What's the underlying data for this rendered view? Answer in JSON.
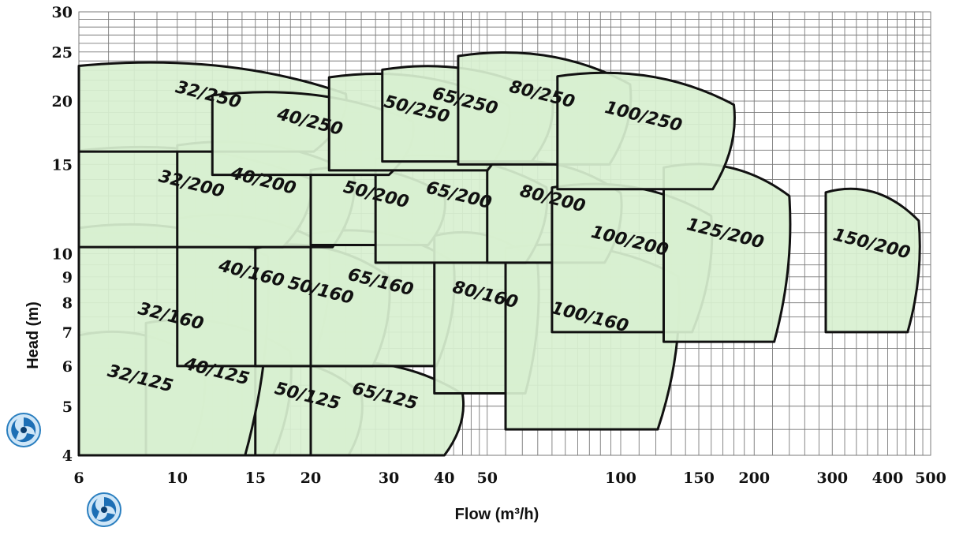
{
  "chart_data": {
    "type": "area",
    "xlabel": "Flow (m³/h)",
    "ylabel": "Head (m)",
    "x_scale": "log",
    "y_scale": "log",
    "xlim": [
      6,
      500
    ],
    "ylim": [
      4,
      30
    ],
    "x_ticks": [
      6,
      10,
      15,
      20,
      30,
      40,
      50,
      100,
      150,
      200,
      300,
      400,
      500
    ],
    "y_ticks": [
      4,
      5,
      6,
      7,
      8,
      9,
      10,
      15,
      20,
      25,
      30
    ],
    "grid": true,
    "region_fill": "#d8f0d0",
    "regions": [
      {
        "label": "32/125",
        "flow_min": 6,
        "flow_max": 11.5,
        "head_min": 4,
        "head_max": 7.0
      },
      {
        "label": "40/125",
        "flow_min": 8.5,
        "flow_max": 18,
        "head_min": 4,
        "head_max": 7.4
      },
      {
        "label": "50/125",
        "flow_min": 15,
        "flow_max": 26,
        "head_min": 4,
        "head_max": 6.1
      },
      {
        "label": "65/125",
        "flow_min": 20,
        "flow_max": 44,
        "head_min": 4,
        "head_max": 6.1
      },
      {
        "label": "32/160",
        "flow_min": 6,
        "flow_max": 16,
        "head_min": 4,
        "head_max": 11.4
      },
      {
        "label": "40/160",
        "flow_min": 10,
        "flow_max": 22,
        "head_min": 6.0,
        "head_max": 11.9
      },
      {
        "label": "50/160",
        "flow_min": 15,
        "flow_max": 30,
        "head_min": 6.0,
        "head_max": 10.4
      },
      {
        "label": "65/160",
        "flow_min": 20,
        "flow_max": 42,
        "head_min": 6.0,
        "head_max": 11.1
      },
      {
        "label": "80/160",
        "flow_min": 38,
        "flow_max": 65,
        "head_min": 5.3,
        "head_max": 11.0
      },
      {
        "label": "100/160",
        "flow_min": 55,
        "flow_max": 135,
        "head_min": 4.5,
        "head_max": 10.4
      },
      {
        "label": "32/200",
        "flow_min": 6,
        "flow_max": 20,
        "head_min": 10.3,
        "head_max": 16.2
      },
      {
        "label": "40/200",
        "flow_min": 10,
        "flow_max": 25,
        "head_min": 10.3,
        "head_max": 16.6
      },
      {
        "label": "50/200",
        "flow_min": 20,
        "flow_max": 40,
        "head_min": 10.4,
        "head_max": 14.8
      },
      {
        "label": "65/200",
        "flow_min": 28,
        "flow_max": 68,
        "head_min": 9.6,
        "head_max": 15.6
      },
      {
        "label": "80/200",
        "flow_min": 50,
        "flow_max": 100,
        "head_min": 9.6,
        "head_max": 15.2
      },
      {
        "label": "100/200",
        "flow_min": 70,
        "flow_max": 160,
        "head_min": 7.0,
        "head_max": 13.7
      },
      {
        "label": "125/200",
        "flow_min": 125,
        "flow_max": 240,
        "head_min": 6.7,
        "head_max": 15.0
      },
      {
        "label": "150/200",
        "flow_min": 290,
        "flow_max": 470,
        "head_min": 7.0,
        "head_max": 13.4
      },
      {
        "label": "32/250",
        "flow_min": 6,
        "flow_max": 24,
        "head_min": 15.9,
        "head_max": 23.8
      },
      {
        "label": "40/250",
        "flow_min": 12,
        "flow_max": 34,
        "head_min": 14.3,
        "head_max": 20.8
      },
      {
        "label": "50/250",
        "flow_min": 22,
        "flow_max": 56,
        "head_min": 14.6,
        "head_max": 22.6
      },
      {
        "label": "65/250",
        "flow_min": 29,
        "flow_max": 70,
        "head_min": 15.2,
        "head_max": 23.4
      },
      {
        "label": "80/250",
        "flow_min": 43,
        "flow_max": 105,
        "head_min": 15.0,
        "head_max": 24.9
      },
      {
        "label": "100/250",
        "flow_min": 72,
        "flow_max": 180,
        "head_min": 13.4,
        "head_max": 22.7
      }
    ]
  }
}
